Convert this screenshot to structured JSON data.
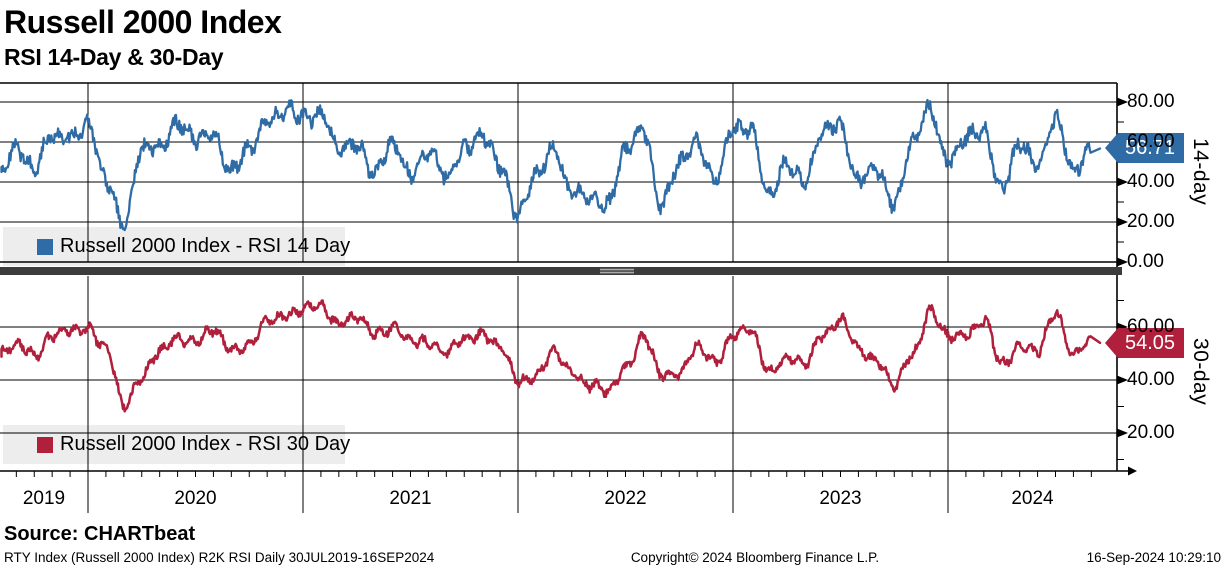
{
  "header": {
    "title": "Russell 2000 Index",
    "subtitle": "RSI 14-Day & 30-Day"
  },
  "source": {
    "label": "Source: CHARTbeat"
  },
  "footer": {
    "left": "RTY Index (Russell 2000 Index) R2K RSI  Daily 30JUL2019-16SEP2024",
    "center": "Copyright© 2024 Bloomberg Finance L.P.",
    "right": "16-Sep-2024 10:29:10"
  },
  "colors": {
    "rsi14": "#2f6ca5",
    "rsi30": "#b01f3b",
    "grid": "#000000",
    "legend_bg": "#ededed",
    "splitter": "#3c3c3c",
    "splitter_handle": "#aaaaaa"
  },
  "chart_data": {
    "type": "line",
    "title": "Russell 2000 Index",
    "subtitle": "RSI 14-Day & 30-Day",
    "frequency": "Daily",
    "date_range": "30JUL2019-16SEP2024",
    "year_labels": [
      "2019",
      "2020",
      "2021",
      "2022",
      "2023",
      "2024"
    ],
    "months": [
      "2019-08",
      "2019-09",
      "2019-10",
      "2019-11",
      "2019-12",
      "2020-01",
      "2020-02",
      "2020-03",
      "2020-04",
      "2020-05",
      "2020-06",
      "2020-07",
      "2020-08",
      "2020-09",
      "2020-10",
      "2020-11",
      "2020-12",
      "2021-01",
      "2021-02",
      "2021-03",
      "2021-04",
      "2021-05",
      "2021-06",
      "2021-07",
      "2021-08",
      "2021-09",
      "2021-10",
      "2021-11",
      "2021-12",
      "2022-01",
      "2022-02",
      "2022-03",
      "2022-04",
      "2022-05",
      "2022-06",
      "2022-07",
      "2022-08",
      "2022-09",
      "2022-10",
      "2022-11",
      "2022-12",
      "2023-01",
      "2023-02",
      "2023-03",
      "2023-04",
      "2023-05",
      "2023-06",
      "2023-07",
      "2023-08",
      "2023-09",
      "2023-10",
      "2023-11",
      "2023-12",
      "2024-01",
      "2024-02",
      "2024-03",
      "2024-04",
      "2024-05",
      "2024-06",
      "2024-07",
      "2024-08",
      "2024-09"
    ],
    "panels": [
      {
        "name": "14-day",
        "legend": "Russell 2000 Index - RSI 14 Day",
        "last_value": "56.71",
        "color": "#2f6ca5",
        "ylim": [
          0,
          89.5
        ],
        "yticks": [
          "80.00",
          "60.00",
          "40.00",
          "20.00",
          "0.00"
        ],
        "ytick_values": [
          80,
          60,
          40,
          20,
          0
        ],
        "values": [
          42,
          58,
          48,
          62,
          64,
          68,
          40,
          20,
          55,
          58,
          70,
          60,
          65,
          45,
          55,
          72,
          75,
          72,
          75,
          55,
          60,
          45,
          58,
          45,
          55,
          42,
          58,
          62,
          48,
          25,
          42,
          58,
          35,
          32,
          30,
          55,
          65,
          30,
          48,
          60,
          42,
          65,
          68,
          32,
          48,
          42,
          65,
          68,
          42,
          45,
          30,
          60,
          75,
          52,
          62,
          65,
          38,
          58,
          48,
          72,
          45,
          56.71
        ]
      },
      {
        "name": "30-day",
        "legend": "Russell 2000 Index - RSI 30 Day",
        "last_value": "54.05",
        "color": "#b01f3b",
        "ylim": [
          5.7,
          79.2
        ],
        "yticks": [
          "60.00",
          "40.00",
          "20.00"
        ],
        "ytick_values": [
          60,
          40,
          20
        ],
        "values": [
          50,
          53,
          50,
          57,
          58,
          60,
          52,
          30,
          42,
          50,
          56,
          55,
          58,
          52,
          53,
          62,
          65,
          66,
          68,
          62,
          63,
          58,
          60,
          54,
          55,
          50,
          55,
          58,
          52,
          40,
          42,
          50,
          44,
          38,
          35,
          45,
          56,
          42,
          43,
          52,
          47,
          57,
          58,
          44,
          48,
          46,
          58,
          62,
          52,
          48,
          37,
          50,
          66,
          56,
          58,
          62,
          46,
          53,
          50,
          66,
          50,
          54.05
        ]
      }
    ],
    "legend_position": "bottom-left of each panel",
    "grid": true,
    "y_axis_side": "right"
  }
}
